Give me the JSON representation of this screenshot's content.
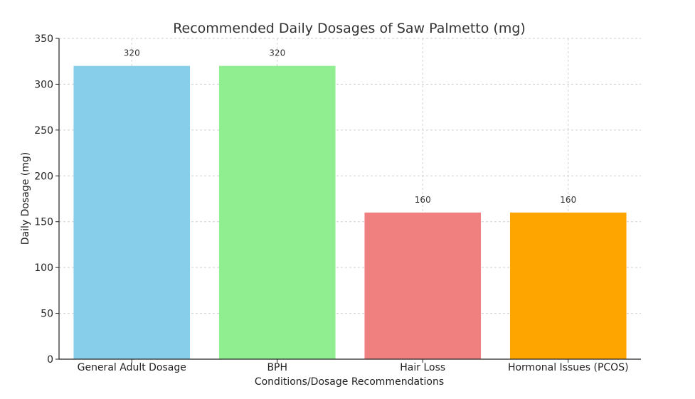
{
  "chart_data": {
    "type": "bar",
    "title": "Recommended Daily Dosages of Saw Palmetto (mg)",
    "xlabel": "Conditions/Dosage Recommendations",
    "ylabel": "Daily Dosage (mg)",
    "categories": [
      "General Adult Dosage",
      "BPH",
      "Hair Loss",
      "Hormonal Issues (PCOS)"
    ],
    "values": [
      320,
      320,
      160,
      160
    ],
    "data_labels": [
      "320",
      "320",
      "160",
      "160"
    ],
    "colors": [
      "#87ceeb",
      "#90ee90",
      "#f08080",
      "#ffa500"
    ],
    "ylim": [
      0,
      350
    ],
    "yticks": [
      0,
      50,
      100,
      150,
      200,
      250,
      300,
      350
    ],
    "grid": true,
    "legend": "none"
  }
}
